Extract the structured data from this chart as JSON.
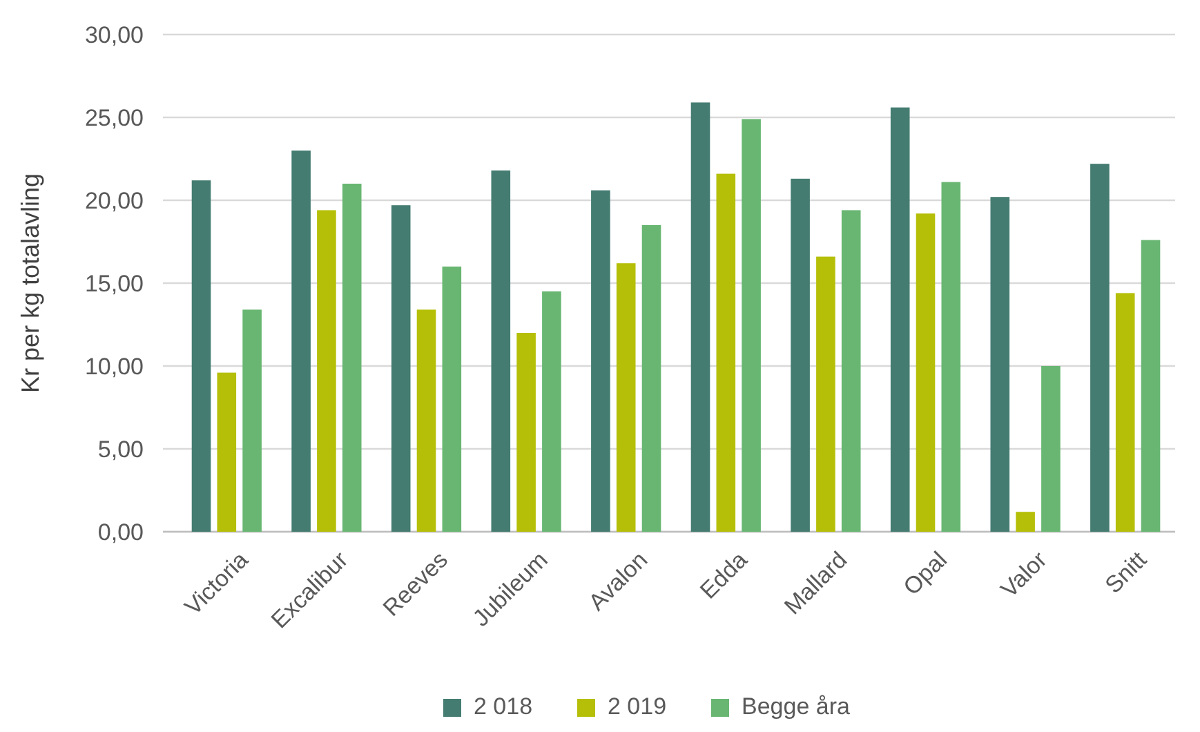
{
  "chart_data": {
    "type": "bar",
    "ylabel": "Kr per kg totalavling",
    "categories": [
      "Victoria",
      "Excalibur",
      "Reeves",
      "Jubileum",
      "Avalon",
      "Edda",
      "Mallard",
      "Opal",
      "Valor",
      "Snitt"
    ],
    "series": [
      {
        "name": "2 018",
        "color": "#447c71",
        "values": [
          21.2,
          23.0,
          19.7,
          21.8,
          20.6,
          25.9,
          21.3,
          25.6,
          20.2,
          22.2
        ]
      },
      {
        "name": "2 019",
        "color": "#b5bf08",
        "values": [
          9.6,
          19.4,
          13.4,
          12.0,
          16.2,
          21.6,
          16.6,
          19.2,
          1.2,
          14.4
        ]
      },
      {
        "name": "Begge åra",
        "color": "#68b672",
        "values": [
          13.4,
          21.0,
          16.0,
          14.5,
          18.5,
          24.9,
          19.4,
          21.1,
          10.0,
          17.6
        ]
      }
    ],
    "ylim": [
      0,
      30
    ],
    "yticks": [
      {
        "value": 0,
        "label": "0,00"
      },
      {
        "value": 5,
        "label": "5,00"
      },
      {
        "value": 10,
        "label": "10,00"
      },
      {
        "value": 15,
        "label": "15,00"
      },
      {
        "value": 20,
        "label": "20,00"
      },
      {
        "value": 25,
        "label": "25,00"
      },
      {
        "value": 30,
        "label": "30,00"
      }
    ],
    "grid": "y",
    "legend": "bottom"
  }
}
